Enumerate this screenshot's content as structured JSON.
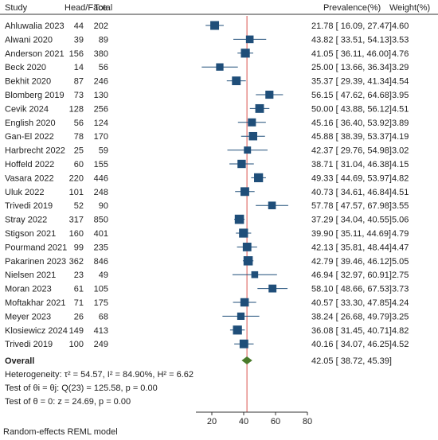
{
  "chart_data": {
    "type": "forest",
    "columns": {
      "study": "Study",
      "head_face": "Head/Face",
      "total": "Total",
      "prevalence": "Prevalence(%)",
      "weight": "Weight(%)"
    },
    "studies": [
      {
        "study": "Ahluwalia 2023",
        "head_face": "44",
        "total": "202",
        "estimate": 21.78,
        "lower": 16.09,
        "upper": 27.47,
        "ci_text": "21.78 [ 16.09, 27.47]",
        "weight": "4.60"
      },
      {
        "study": "Alwani 2020",
        "head_face": "39",
        "total": "89",
        "estimate": 43.82,
        "lower": 33.51,
        "upper": 54.13,
        "ci_text": "43.82 [ 33.51, 54.13]",
        "weight": "3.53"
      },
      {
        "study": "Anderson 2021",
        "head_face": "156",
        "total": "380",
        "estimate": 41.05,
        "lower": 36.11,
        "upper": 46.0,
        "ci_text": "41.05 [ 36.11, 46.00]",
        "weight": "4.76"
      },
      {
        "study": "Beck 2020",
        "head_face": "14",
        "total": "56",
        "estimate": 25.0,
        "lower": 13.66,
        "upper": 36.34,
        "ci_text": "25.00 [ 13.66, 36.34]",
        "weight": "3.29"
      },
      {
        "study": "Bekhit  2020",
        "head_face": "87",
        "total": "246",
        "estimate": 35.37,
        "lower": 29.39,
        "upper": 41.34,
        "ci_text": "35.37 [ 29.39, 41.34]",
        "weight": "4.54"
      },
      {
        "study": "Blomberg 2019",
        "head_face": "73",
        "total": "130",
        "estimate": 56.15,
        "lower": 47.62,
        "upper": 64.68,
        "ci_text": "56.15 [ 47.62, 64.68]",
        "weight": "3.95"
      },
      {
        "study": "Cevik 2024",
        "head_face": "128",
        "total": "256",
        "estimate": 50.0,
        "lower": 43.88,
        "upper": 56.12,
        "ci_text": "50.00 [ 43.88, 56.12]",
        "weight": "4.51"
      },
      {
        "study": "English  2020",
        "head_face": "56",
        "total": "124",
        "estimate": 45.16,
        "lower": 36.4,
        "upper": 53.92,
        "ci_text": "45.16 [ 36.40, 53.92]",
        "weight": "3.89"
      },
      {
        "study": "Gan-El 2022",
        "head_face": "78",
        "total": "170",
        "estimate": 45.88,
        "lower": 38.39,
        "upper": 53.37,
        "ci_text": "45.88 [ 38.39, 53.37]",
        "weight": "4.19"
      },
      {
        "study": "Harbrecht 2022",
        "head_face": "25",
        "total": "59",
        "estimate": 42.37,
        "lower": 29.76,
        "upper": 54.98,
        "ci_text": "42.37 [ 29.76, 54.98]",
        "weight": "3.02"
      },
      {
        "study": "Hoffeld 2022",
        "head_face": "60",
        "total": "155",
        "estimate": 38.71,
        "lower": 31.04,
        "upper": 46.38,
        "ci_text": "38.71 [ 31.04, 46.38]",
        "weight": "4.15"
      },
      {
        "study": "Vasara 2022",
        "head_face": "220",
        "total": "446",
        "estimate": 49.33,
        "lower": 44.69,
        "upper": 53.97,
        "ci_text": "49.33 [ 44.69, 53.97]",
        "weight": "4.82"
      },
      {
        "study": "Uluk 2022",
        "head_face": "101",
        "total": "248",
        "estimate": 40.73,
        "lower": 34.61,
        "upper": 46.84,
        "ci_text": "40.73 [ 34.61, 46.84]",
        "weight": "4.51"
      },
      {
        "study": "Trivedi 2019",
        "head_face": "52",
        "total": "90",
        "estimate": 57.78,
        "lower": 47.57,
        "upper": 67.98,
        "ci_text": "57.78 [ 47.57, 67.98]",
        "weight": "3.55"
      },
      {
        "study": "Stray 2022",
        "head_face": "317",
        "total": "850",
        "estimate": 37.29,
        "lower": 34.04,
        "upper": 40.55,
        "ci_text": "37.29 [ 34.04, 40.55]",
        "weight": "5.06"
      },
      {
        "study": "Stigson 2021",
        "head_face": "160",
        "total": "401",
        "estimate": 39.9,
        "lower": 35.11,
        "upper": 44.69,
        "ci_text": "39.90 [ 35.11, 44.69]",
        "weight": "4.79"
      },
      {
        "study": "Pourmand 2021",
        "head_face": "99",
        "total": "235",
        "estimate": 42.13,
        "lower": 35.81,
        "upper": 48.44,
        "ci_text": "42.13 [ 35.81, 48.44]",
        "weight": "4.47"
      },
      {
        "study": "Pakarinen 2023",
        "head_face": "362",
        "total": "846",
        "estimate": 42.79,
        "lower": 39.46,
        "upper": 46.12,
        "ci_text": "42.79 [ 39.46, 46.12]",
        "weight": "5.05"
      },
      {
        "study": "Nielsen 2021",
        "head_face": "23",
        "total": "49",
        "estimate": 46.94,
        "lower": 32.97,
        "upper": 60.91,
        "ci_text": "46.94 [ 32.97, 60.91]",
        "weight": "2.75"
      },
      {
        "study": "Moran 2023",
        "head_face": "61",
        "total": "105",
        "estimate": 58.1,
        "lower": 48.66,
        "upper": 67.53,
        "ci_text": "58.10 [ 48.66, 67.53]",
        "weight": "3.73"
      },
      {
        "study": "Moftakhar 2021",
        "head_face": "71",
        "total": "175",
        "estimate": 40.57,
        "lower": 33.3,
        "upper": 47.85,
        "ci_text": "40.57 [ 33.30, 47.85]",
        "weight": "4.24"
      },
      {
        "study": "Meyer 2023",
        "head_face": "26",
        "total": "68",
        "estimate": 38.24,
        "lower": 26.68,
        "upper": 49.79,
        "ci_text": "38.24 [ 26.68, 49.79]",
        "weight": "3.25"
      },
      {
        "study": "Klosiewicz 2024",
        "head_face": "149",
        "total": "413",
        "estimate": 36.08,
        "lower": 31.45,
        "upper": 40.71,
        "ci_text": "36.08 [ 31.45, 40.71]",
        "weight": "4.82"
      },
      {
        "study": "Trivedi 2019",
        "head_face": "100",
        "total": "249",
        "estimate": 40.16,
        "lower": 34.07,
        "upper": 46.25,
        "ci_text": "40.16 [ 34.07, 46.25]",
        "weight": "4.52"
      }
    ],
    "overall": {
      "label": "Overall",
      "estimate": 42.05,
      "lower": 38.72,
      "upper": 45.39,
      "ci_text": "42.05 [ 38.72, 45.39]"
    },
    "heterogeneity": "Heterogeneity: τ² = 54.57, I² = 84.90%, H² = 6.62",
    "test_homogeneity": "Test of θi = θj: Q(23) = 125.58, p = 0.00",
    "test_theta": "Test of θ = 0: z = 24.69, p = 0.00",
    "footnote": "Random-effects REML model",
    "x_ticks": [
      20,
      40,
      60,
      80
    ],
    "x_tick_labels": [
      "20",
      "40",
      "60",
      "80"
    ],
    "xlim": [
      10,
      80
    ],
    "reference_line": 42.05,
    "colors": {
      "marker": "#1f4e79",
      "ci_line": "#1f4e79",
      "overall_diamond": "#4a7a2a",
      "reference_line": "#d9534f",
      "axis": "#333333",
      "text": "#222222"
    }
  }
}
